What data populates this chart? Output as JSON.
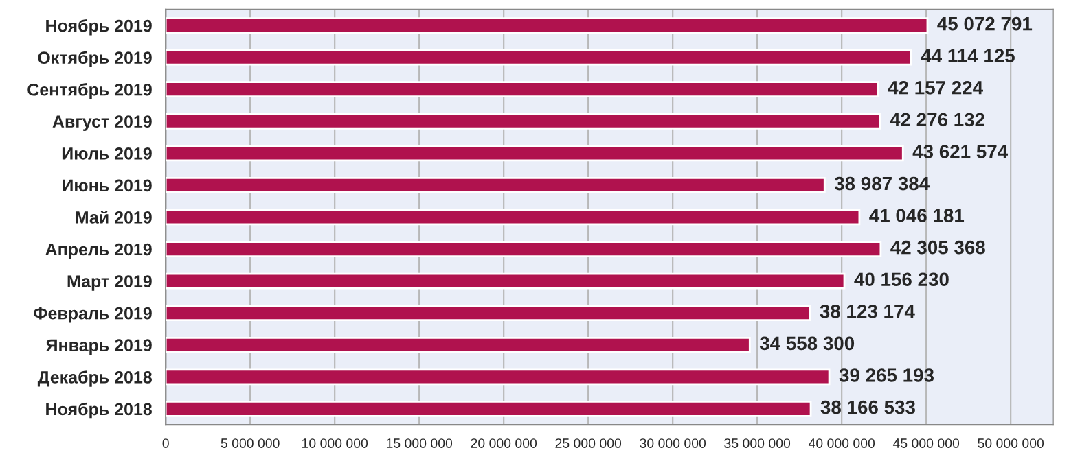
{
  "chart_data": {
    "type": "bar",
    "orientation": "horizontal",
    "categories": [
      "Ноябрь 2019",
      "Октябрь 2019",
      "Сентябрь 2019",
      "Август 2019",
      "Июль 2019",
      "Июнь 2019",
      "Май 2019",
      "Апрель 2019",
      "Март 2019",
      "Февраль 2019",
      "Январь 2019",
      "Декабрь 2018",
      "Ноябрь 2018"
    ],
    "values": [
      45072791,
      44114125,
      42157224,
      42276132,
      43621574,
      38987384,
      41046181,
      42305368,
      40156230,
      38123174,
      34558300,
      39265193,
      38166533
    ],
    "value_labels": [
      "45 072 791",
      "44 114 125",
      "42 157 224",
      "42 276 132",
      "43 621 574",
      "38 987 384",
      "41 046 181",
      "42 305 368",
      "40 156 230",
      "38 123 174",
      "34 558 300",
      "39 265 193",
      "38 166 533"
    ],
    "color": "#b0124e",
    "xlim": [
      0,
      52500000
    ],
    "xticks": [
      {
        "value": 0,
        "label": "0"
      },
      {
        "value": 5000000,
        "label": "5 000 000"
      },
      {
        "value": 10000000,
        "label": "10 000 000"
      },
      {
        "value": 15000000,
        "label": "15 000 000"
      },
      {
        "value": 20000000,
        "label": "20 000 000"
      },
      {
        "value": 25000000,
        "label": "25 000 000"
      },
      {
        "value": 30000000,
        "label": "30 000 000"
      },
      {
        "value": 35000000,
        "label": "35 000 000"
      },
      {
        "value": 40000000,
        "label": "40 000 000"
      },
      {
        "value": 45000000,
        "label": "45 000 000"
      },
      {
        "value": 50000000,
        "label": "50 000 000"
      }
    ],
    "grid": "x"
  }
}
